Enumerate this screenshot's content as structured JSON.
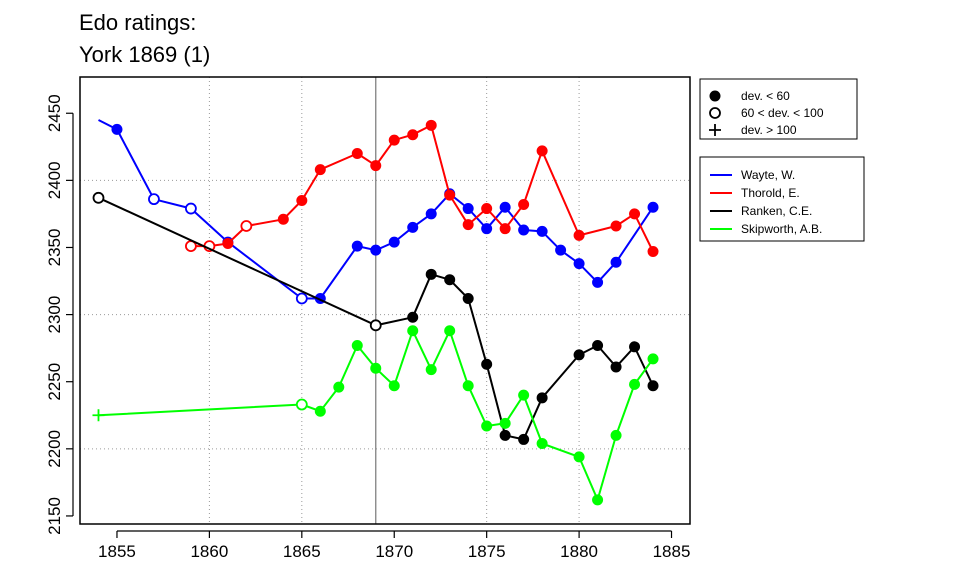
{
  "title": {
    "line1": "Edo ratings:",
    "line2": "York 1869 (1)"
  },
  "chart_data": {
    "type": "line",
    "title": "Edo ratings: York 1869 (1)",
    "xlabel": "",
    "ylabel": "",
    "xlim": [
      1853,
      1886
    ],
    "ylim": [
      2144,
      2477
    ],
    "xticks": [
      1855,
      1860,
      1865,
      1870,
      1875,
      1880,
      1885
    ],
    "yticks": [
      2150,
      2200,
      2250,
      2300,
      2350,
      2400,
      2450
    ],
    "grid_x": [
      1860,
      1865,
      1875,
      1880
    ],
    "grid_y": [
      2200,
      2300,
      2400
    ],
    "vline": 1869,
    "marker_legend": [
      {
        "marker": "filled",
        "label": "dev. < 60"
      },
      {
        "marker": "open",
        "label": "60 < dev. < 100"
      },
      {
        "marker": "plus",
        "label": "dev. > 100"
      }
    ],
    "series": [
      {
        "name": "Wayte, W.",
        "color": "#0000ff",
        "points": [
          {
            "x": 1854,
            "y": 2445,
            "m": "none"
          },
          {
            "x": 1855,
            "y": 2438,
            "m": "filled"
          },
          {
            "x": 1857,
            "y": 2386,
            "m": "open"
          },
          {
            "x": 1859,
            "y": 2379,
            "m": "open"
          },
          {
            "x": 1861,
            "y": 2354,
            "m": "filled"
          },
          {
            "x": 1865,
            "y": 2312,
            "m": "open"
          },
          {
            "x": 1866,
            "y": 2312,
            "m": "filled"
          },
          {
            "x": 1868,
            "y": 2351,
            "m": "filled"
          },
          {
            "x": 1869,
            "y": 2348,
            "m": "filled"
          },
          {
            "x": 1870,
            "y": 2354,
            "m": "filled"
          },
          {
            "x": 1871,
            "y": 2365,
            "m": "filled"
          },
          {
            "x": 1872,
            "y": 2375,
            "m": "filled"
          },
          {
            "x": 1873,
            "y": 2390,
            "m": "filled"
          },
          {
            "x": 1874,
            "y": 2379,
            "m": "filled"
          },
          {
            "x": 1875,
            "y": 2364,
            "m": "filled"
          },
          {
            "x": 1876,
            "y": 2380,
            "m": "filled"
          },
          {
            "x": 1877,
            "y": 2363,
            "m": "filled"
          },
          {
            "x": 1878,
            "y": 2362,
            "m": "filled"
          },
          {
            "x": 1879,
            "y": 2348,
            "m": "filled"
          },
          {
            "x": 1880,
            "y": 2338,
            "m": "filled"
          },
          {
            "x": 1881,
            "y": 2324,
            "m": "filled"
          },
          {
            "x": 1882,
            "y": 2339,
            "m": "filled"
          },
          {
            "x": 1884,
            "y": 2380,
            "m": "filled"
          }
        ]
      },
      {
        "name": "Thorold, E.",
        "color": "#ff0000",
        "points": [
          {
            "x": 1859,
            "y": 2351,
            "m": "open"
          },
          {
            "x": 1860,
            "y": 2351,
            "m": "open"
          },
          {
            "x": 1861,
            "y": 2353,
            "m": "filled"
          },
          {
            "x": 1862,
            "y": 2366,
            "m": "open"
          },
          {
            "x": 1864,
            "y": 2371,
            "m": "filled"
          },
          {
            "x": 1865,
            "y": 2385,
            "m": "filled"
          },
          {
            "x": 1866,
            "y": 2408,
            "m": "filled"
          },
          {
            "x": 1868,
            "y": 2420,
            "m": "filled"
          },
          {
            "x": 1869,
            "y": 2411,
            "m": "filled"
          },
          {
            "x": 1870,
            "y": 2430,
            "m": "filled"
          },
          {
            "x": 1871,
            "y": 2434,
            "m": "filled"
          },
          {
            "x": 1872,
            "y": 2441,
            "m": "filled"
          },
          {
            "x": 1873,
            "y": 2389,
            "m": "filled"
          },
          {
            "x": 1874,
            "y": 2367,
            "m": "filled"
          },
          {
            "x": 1875,
            "y": 2379,
            "m": "filled"
          },
          {
            "x": 1876,
            "y": 2364,
            "m": "filled"
          },
          {
            "x": 1877,
            "y": 2382,
            "m": "filled"
          },
          {
            "x": 1878,
            "y": 2422,
            "m": "filled"
          },
          {
            "x": 1880,
            "y": 2359,
            "m": "filled"
          },
          {
            "x": 1882,
            "y": 2366,
            "m": "filled"
          },
          {
            "x": 1883,
            "y": 2375,
            "m": "filled"
          },
          {
            "x": 1884,
            "y": 2347,
            "m": "filled"
          }
        ]
      },
      {
        "name": "Ranken, C.E.",
        "color": "#000000",
        "points": [
          {
            "x": 1854,
            "y": 2387,
            "m": "open"
          },
          {
            "x": 1869,
            "y": 2292,
            "m": "open"
          },
          {
            "x": 1871,
            "y": 2298,
            "m": "filled"
          },
          {
            "x": 1872,
            "y": 2330,
            "m": "filled"
          },
          {
            "x": 1873,
            "y": 2326,
            "m": "filled"
          },
          {
            "x": 1874,
            "y": 2312,
            "m": "filled"
          },
          {
            "x": 1875,
            "y": 2263,
            "m": "filled"
          },
          {
            "x": 1876,
            "y": 2210,
            "m": "filled"
          },
          {
            "x": 1877,
            "y": 2207,
            "m": "filled"
          },
          {
            "x": 1878,
            "y": 2238,
            "m": "filled"
          },
          {
            "x": 1880,
            "y": 2270,
            "m": "filled"
          },
          {
            "x": 1881,
            "y": 2277,
            "m": "filled"
          },
          {
            "x": 1882,
            "y": 2261,
            "m": "filled"
          },
          {
            "x": 1883,
            "y": 2276,
            "m": "filled"
          },
          {
            "x": 1884,
            "y": 2247,
            "m": "filled"
          }
        ]
      },
      {
        "name": "Skipworth, A.B.",
        "color": "#00ff00",
        "points": [
          {
            "x": 1854,
            "y": 2225,
            "m": "plus"
          },
          {
            "x": 1865,
            "y": 2233,
            "m": "open"
          },
          {
            "x": 1866,
            "y": 2228,
            "m": "filled"
          },
          {
            "x": 1867,
            "y": 2246,
            "m": "filled"
          },
          {
            "x": 1868,
            "y": 2277,
            "m": "filled"
          },
          {
            "x": 1869,
            "y": 2260,
            "m": "filled"
          },
          {
            "x": 1870,
            "y": 2247,
            "m": "filled"
          },
          {
            "x": 1871,
            "y": 2288,
            "m": "filled"
          },
          {
            "x": 1872,
            "y": 2259,
            "m": "filled"
          },
          {
            "x": 1873,
            "y": 2288,
            "m": "filled"
          },
          {
            "x": 1874,
            "y": 2247,
            "m": "filled"
          },
          {
            "x": 1875,
            "y": 2217,
            "m": "filled"
          },
          {
            "x": 1876,
            "y": 2219,
            "m": "filled"
          },
          {
            "x": 1877,
            "y": 2240,
            "m": "filled"
          },
          {
            "x": 1878,
            "y": 2204,
            "m": "filled"
          },
          {
            "x": 1880,
            "y": 2194,
            "m": "filled"
          },
          {
            "x": 1881,
            "y": 2162,
            "m": "filled"
          },
          {
            "x": 1882,
            "y": 2210,
            "m": "filled"
          },
          {
            "x": 1883,
            "y": 2248,
            "m": "filled"
          },
          {
            "x": 1884,
            "y": 2267,
            "m": "filled"
          }
        ]
      }
    ]
  }
}
